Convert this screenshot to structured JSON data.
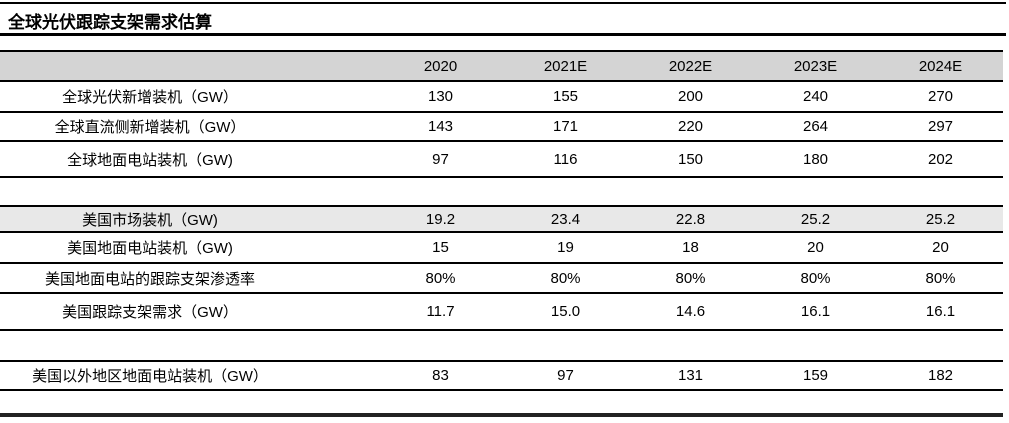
{
  "page": {
    "title": "全球光伏跟踪支架需求估算"
  },
  "colors": {
    "header_bg": "#d4d4d4",
    "highlight_bg": "#e8e8e8"
  },
  "table": {
    "years": [
      "2020",
      "2021E",
      "2022E",
      "2023E",
      "2024E"
    ],
    "rows": [
      {
        "label": "全球光伏新增装机（GW）",
        "values": [
          "130",
          "155",
          "200",
          "240",
          "270"
        ]
      },
      {
        "label": "全球直流侧新增装机（GW）",
        "values": [
          "143",
          "171",
          "220",
          "264",
          "297"
        ]
      },
      {
        "label": "全球地面电站装机（GW)",
        "values": [
          "97",
          "116",
          "150",
          "180",
          "202"
        ]
      },
      {
        "label": "美国市场装机（GW)",
        "values": [
          "19.2",
          "23.4",
          "22.8",
          "25.2",
          "25.2"
        ]
      },
      {
        "label": "美国地面电站装机（GW)",
        "values": [
          "15",
          "19",
          "18",
          "20",
          "20"
        ]
      },
      {
        "label": "美国地面电站的跟踪支架渗透率",
        "values": [
          "80%",
          "80%",
          "80%",
          "80%",
          "80%"
        ]
      },
      {
        "label": "美国跟踪支架需求（GW）",
        "values": [
          "11.7",
          "15.0",
          "14.6",
          "16.1",
          "16.1"
        ]
      },
      {
        "label": "美国以外地区地面电站装机（GW）",
        "values": [
          "83",
          "97",
          "131",
          "159",
          "182"
        ]
      }
    ]
  },
  "chart_data": {
    "type": "table",
    "title": "全球光伏跟踪支架需求估算",
    "columns": [
      "",
      "2020",
      "2021E",
      "2022E",
      "2023E",
      "2024E"
    ],
    "rows": [
      [
        "全球光伏新增装机（GW）",
        130,
        155,
        200,
        240,
        270
      ],
      [
        "全球直流侧新增装机（GW）",
        143,
        171,
        220,
        264,
        297
      ],
      [
        "全球地面电站装机（GW)",
        97,
        116,
        150,
        180,
        202
      ],
      [
        "美国市场装机（GW)",
        19.2,
        23.4,
        22.8,
        25.2,
        25.2
      ],
      [
        "美国地面电站装机（GW)",
        15,
        19,
        18,
        20,
        20
      ],
      [
        "美国地面电站的跟踪支架渗透率",
        "80%",
        "80%",
        "80%",
        "80%",
        "80%"
      ],
      [
        "美国跟踪支架需求（GW）",
        11.7,
        15.0,
        14.6,
        16.1,
        16.1
      ],
      [
        "美国以外地区地面电站装机（GW）",
        83,
        97,
        131,
        159,
        182
      ]
    ]
  }
}
